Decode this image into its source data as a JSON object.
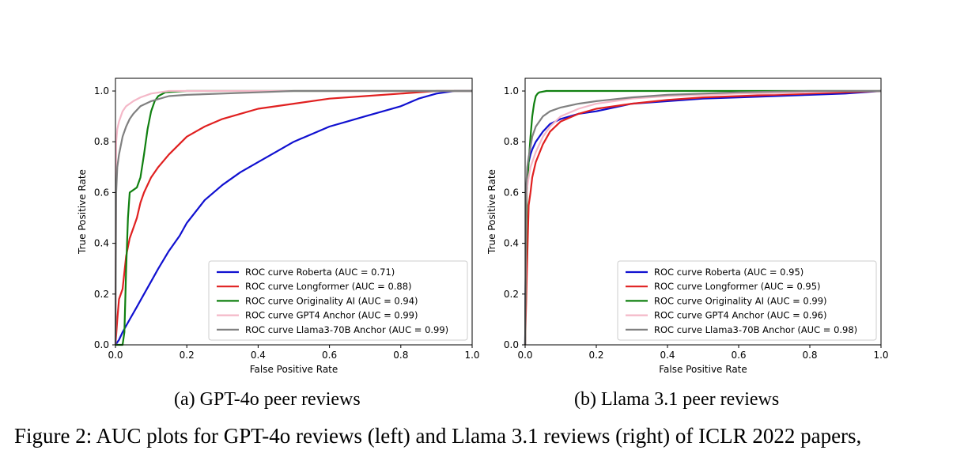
{
  "figure": {
    "caption_a": "(a) GPT-4o peer reviews",
    "caption_b": "(b) Llama 3.1 peer reviews",
    "figure_caption": "Figure 2: AUC plots for GPT-4o reviews (left) and Llama 3.1 reviews (right) of ICLR 2022 papers,"
  },
  "chart_data": [
    {
      "type": "line",
      "title": "",
      "xlabel": "False Positive Rate",
      "ylabel": "True Positive Rate",
      "xlim": [
        0,
        1
      ],
      "ylim": [
        0,
        1.05
      ],
      "xticks": [
        "0.0",
        "0.2",
        "0.4",
        "0.6",
        "0.8",
        "1.0"
      ],
      "yticks": [
        "0.0",
        "0.2",
        "0.4",
        "0.6",
        "0.8",
        "1.0"
      ],
      "grid": false,
      "legend_position": "lower-right",
      "series": [
        {
          "name": "ROC curve Roberta (AUC = 0.71)",
          "color": "#1010d0",
          "x": [
            0,
            0.01,
            0.02,
            0.04,
            0.06,
            0.08,
            0.1,
            0.12,
            0.15,
            0.18,
            0.2,
            0.25,
            0.3,
            0.35,
            0.4,
            0.45,
            0.5,
            0.55,
            0.6,
            0.65,
            0.7,
            0.75,
            0.8,
            0.85,
            0.9,
            0.95,
            1.0
          ],
          "y": [
            0,
            0.02,
            0.05,
            0.1,
            0.15,
            0.2,
            0.25,
            0.3,
            0.37,
            0.43,
            0.48,
            0.57,
            0.63,
            0.68,
            0.72,
            0.76,
            0.8,
            0.83,
            0.86,
            0.88,
            0.9,
            0.92,
            0.94,
            0.97,
            0.99,
            1.0,
            1.0
          ]
        },
        {
          "name": "ROC curve Longformer (AUC = 0.88)",
          "color": "#e02020",
          "x": [
            0,
            0.005,
            0.01,
            0.02,
            0.03,
            0.04,
            0.05,
            0.06,
            0.07,
            0.08,
            0.1,
            0.12,
            0.15,
            0.2,
            0.25,
            0.3,
            0.35,
            0.4,
            0.5,
            0.6,
            0.7,
            0.8,
            0.9,
            1.0
          ],
          "y": [
            0,
            0.1,
            0.18,
            0.22,
            0.35,
            0.42,
            0.46,
            0.5,
            0.56,
            0.6,
            0.66,
            0.7,
            0.75,
            0.82,
            0.86,
            0.89,
            0.91,
            0.93,
            0.95,
            0.97,
            0.98,
            0.99,
            1.0,
            1.0
          ]
        },
        {
          "name": "ROC curve Originality AI (AUC = 0.94)",
          "color": "#108010",
          "x": [
            0,
            0.02,
            0.025,
            0.03,
            0.035,
            0.04,
            0.05,
            0.06,
            0.07,
            0.08,
            0.09,
            0.1,
            0.11,
            0.12,
            0.14,
            0.2,
            0.3,
            0.5,
            1.0
          ],
          "y": [
            0,
            0.0,
            0.05,
            0.3,
            0.5,
            0.6,
            0.61,
            0.62,
            0.66,
            0.75,
            0.85,
            0.92,
            0.96,
            0.98,
            0.995,
            1.0,
            1.0,
            1.0,
            1.0
          ]
        },
        {
          "name": "ROC curve GPT4 Anchor (AUC = 0.99)",
          "color": "#f4b8c8",
          "x": [
            0,
            0.002,
            0.005,
            0.01,
            0.02,
            0.03,
            0.05,
            0.07,
            0.1,
            0.15,
            0.2,
            0.3,
            0.5,
            1.0
          ],
          "y": [
            0,
            0.8,
            0.85,
            0.88,
            0.92,
            0.94,
            0.96,
            0.975,
            0.99,
            1.0,
            1.0,
            1.0,
            1.0,
            1.0
          ]
        },
        {
          "name": "ROC curve Llama3-70B Anchor (AUC = 0.99)",
          "color": "#808080",
          "x": [
            0,
            0.002,
            0.005,
            0.01,
            0.02,
            0.03,
            0.04,
            0.05,
            0.07,
            0.1,
            0.15,
            0.2,
            0.3,
            0.4,
            0.5,
            0.7,
            1.0
          ],
          "y": [
            0,
            0.6,
            0.7,
            0.75,
            0.82,
            0.86,
            0.89,
            0.91,
            0.94,
            0.96,
            0.98,
            0.985,
            0.99,
            0.995,
            1.0,
            1.0,
            1.0
          ]
        }
      ]
    },
    {
      "type": "line",
      "title": "",
      "xlabel": "False Positive Rate",
      "ylabel": "True Positive Rate",
      "xlim": [
        0,
        1
      ],
      "ylim": [
        0,
        1.05
      ],
      "xticks": [
        "0.0",
        "0.2",
        "0.4",
        "0.6",
        "0.8",
        "1.0"
      ],
      "yticks": [
        "0.0",
        "0.2",
        "0.4",
        "0.6",
        "0.8",
        "1.0"
      ],
      "grid": false,
      "legend_position": "lower-right",
      "series": [
        {
          "name": "ROC curve Roberta  (AUC = 0.95)",
          "color": "#1010d0",
          "x": [
            0,
            0.003,
            0.006,
            0.01,
            0.015,
            0.02,
            0.03,
            0.05,
            0.07,
            0.1,
            0.15,
            0.2,
            0.3,
            0.4,
            0.5,
            0.6,
            0.7,
            0.8,
            0.9,
            1.0
          ],
          "y": [
            0,
            0.6,
            0.68,
            0.72,
            0.75,
            0.77,
            0.8,
            0.84,
            0.87,
            0.89,
            0.91,
            0.92,
            0.95,
            0.96,
            0.97,
            0.975,
            0.98,
            0.985,
            0.99,
            1.0
          ]
        },
        {
          "name": "ROC curve Longformer (AUC = 0.95)",
          "color": "#e02020",
          "x": [
            0,
            0.005,
            0.01,
            0.015,
            0.02,
            0.03,
            0.05,
            0.07,
            0.1,
            0.15,
            0.2,
            0.3,
            0.4,
            0.5,
            0.6,
            0.7,
            0.8,
            0.9,
            1.0
          ],
          "y": [
            0,
            0.3,
            0.55,
            0.6,
            0.66,
            0.72,
            0.79,
            0.84,
            0.88,
            0.91,
            0.93,
            0.95,
            0.965,
            0.975,
            0.98,
            0.985,
            0.99,
            0.995,
            1.0
          ]
        },
        {
          "name": "ROC curve Originality AI (AUC = 0.99)",
          "color": "#108010",
          "x": [
            0,
            0.002,
            0.005,
            0.01,
            0.015,
            0.02,
            0.025,
            0.03,
            0.035,
            0.04,
            0.06,
            0.1,
            0.2,
            0.5,
            1.0
          ],
          "y": [
            0,
            0.3,
            0.6,
            0.72,
            0.82,
            0.9,
            0.95,
            0.98,
            0.99,
            0.995,
            1.0,
            1.0,
            1.0,
            1.0,
            1.0
          ]
        },
        {
          "name": "ROC curve GPT4 Anchor (AUC = 0.96)",
          "color": "#f4b8c8",
          "x": [
            0,
            0.003,
            0.006,
            0.01,
            0.015,
            0.02,
            0.03,
            0.05,
            0.07,
            0.1,
            0.15,
            0.2,
            0.3,
            0.4,
            0.5,
            0.6,
            0.7,
            0.8,
            0.9,
            1.0
          ],
          "y": [
            0,
            0.55,
            0.62,
            0.66,
            0.7,
            0.72,
            0.76,
            0.82,
            0.86,
            0.9,
            0.93,
            0.95,
            0.97,
            0.98,
            0.985,
            0.99,
            0.99,
            0.995,
            1.0,
            1.0
          ]
        },
        {
          "name": "ROC curve Llama3-70B Anchor (AUC = 0.98)",
          "color": "#808080",
          "x": [
            0,
            0.003,
            0.006,
            0.01,
            0.015,
            0.02,
            0.03,
            0.05,
            0.07,
            0.1,
            0.15,
            0.2,
            0.3,
            0.4,
            0.5,
            0.6,
            0.8,
            1.0
          ],
          "y": [
            0,
            0.62,
            0.7,
            0.74,
            0.78,
            0.82,
            0.86,
            0.9,
            0.92,
            0.935,
            0.95,
            0.96,
            0.975,
            0.985,
            0.99,
            0.995,
            1.0,
            1.0
          ]
        }
      ]
    }
  ]
}
